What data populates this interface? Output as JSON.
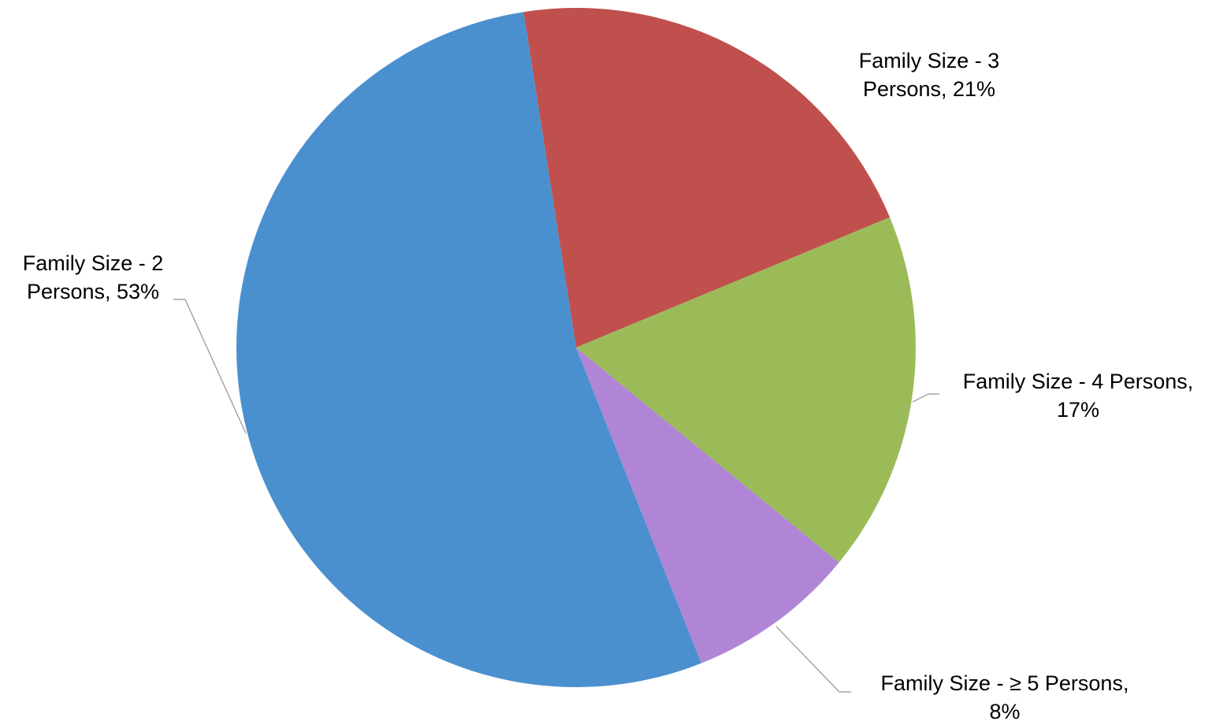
{
  "chart_data": {
    "type": "pie",
    "title": "",
    "start_angle_deg": -8.9,
    "direction": "clockwise",
    "slices": [
      {
        "name": "Family Size - 3 Persons",
        "value": 21,
        "color": "#c0504d",
        "label_lines": [
          "Family Size - 3",
          "Persons, 21%"
        ]
      },
      {
        "name": "Family Size - 4 Persons",
        "value": 17,
        "color": "#9bbb59",
        "label_lines": [
          "Family Size - 4 Persons,",
          "17%"
        ]
      },
      {
        "name": "Family Size - ≥ 5 Persons",
        "value": 8,
        "color": "#b085d6",
        "label_lines": [
          "Family Size - ≥ 5 Persons,",
          "8%"
        ]
      },
      {
        "name": "Family Size - 2 Persons",
        "value": 53,
        "color": "#4a90cf",
        "label_lines": [
          "Family Size - 2",
          "Persons, 53%"
        ]
      }
    ]
  }
}
